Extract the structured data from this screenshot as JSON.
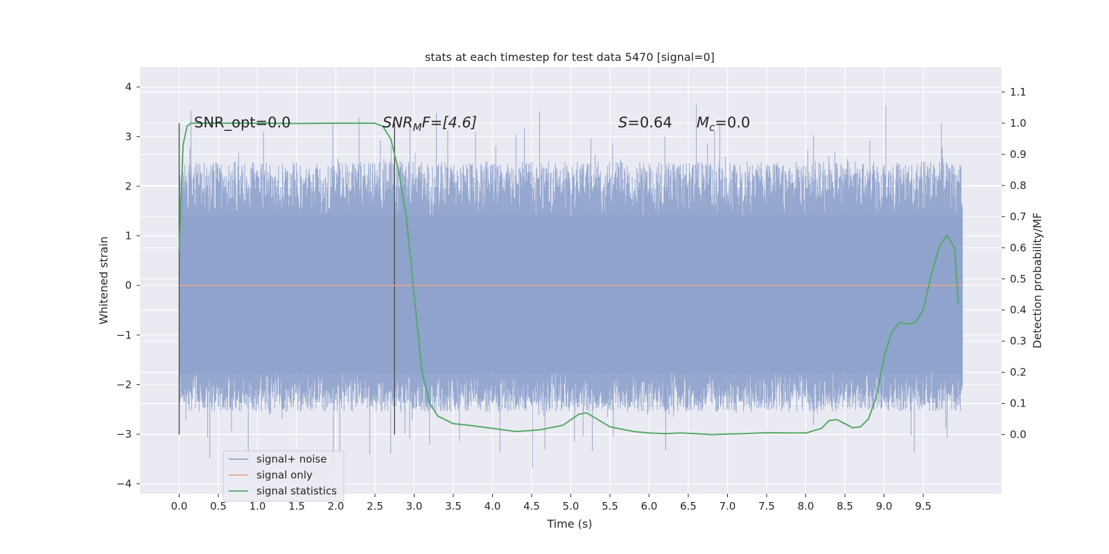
{
  "chart_data": {
    "type": "line",
    "title": "stats at each timestep for test data 5470 [signal=0]",
    "xlabel": "Time (s)",
    "ylabel": "Whitened strain",
    "ylabel_right": "Detection probability/MF",
    "xlim": [
      -0.5,
      10.5
    ],
    "ylim": [
      -4.2,
      4.4
    ],
    "ylim_right": [
      -0.19,
      1.18
    ],
    "x_ticks": [
      "0.0",
      "0.5",
      "1.0",
      "1.5",
      "2.0",
      "2.5",
      "3.0",
      "3.5",
      "4.0",
      "4.5",
      "5.0",
      "5.5",
      "6.0",
      "6.5",
      "7.0",
      "7.5",
      "8.0",
      "8.5",
      "9.0",
      "9.5"
    ],
    "x_tick_values": [
      0,
      0.5,
      1,
      1.5,
      2,
      2.5,
      3,
      3.5,
      4,
      4.5,
      5,
      5.5,
      6,
      6.5,
      7,
      7.5,
      8,
      8.5,
      9,
      9.5
    ],
    "y_ticks": [
      "4",
      "3",
      "2",
      "1",
      "0",
      "−1",
      "−2",
      "−3",
      "−4"
    ],
    "y_tick_values": [
      4,
      3,
      2,
      1,
      0,
      -1,
      -2,
      -3,
      -4
    ],
    "y_ticks_right": [
      "1.1",
      "1.0",
      "0.9",
      "0.8",
      "0.7",
      "0.6",
      "0.5",
      "0.4",
      "0.3",
      "0.2",
      "0.1",
      "0.0"
    ],
    "y_tick_values_right": [
      1.1,
      1.0,
      0.9,
      0.8,
      0.7,
      0.6,
      0.5,
      0.4,
      0.3,
      0.2,
      0.1,
      0.0
    ],
    "grid": true,
    "legend": "bottom-left",
    "annotations": {
      "snr_opt": "SNR_opt=0.0",
      "snr_mf_base": "SNR",
      "snr_mf_sub": "M",
      "snr_mf_rest": "F=[4.6]",
      "stat_s_italic": "S",
      "stat_s_rest": "=0.64",
      "mc_base": "M",
      "mc_sub": "c",
      "mc_rest": "=0.0"
    },
    "vertical_markers": [
      0.0,
      2.75
    ],
    "series": [
      {
        "name": "signal+ noise",
        "color": "#8fa3cc",
        "axis": "left",
        "envelope": {
          "x_range": [
            0.0,
            10.0
          ],
          "typical_upper": 1.4,
          "typical_lower": -1.75,
          "peak_max": 4.05,
          "peak_min": -3.75
        }
      },
      {
        "name": "signal only",
        "color": "#e8a48a",
        "axis": "left",
        "x": [
          0.0,
          10.0
        ],
        "values": [
          0.0,
          0.0
        ]
      },
      {
        "name": "signal statistics",
        "color": "#55a868",
        "axis": "right",
        "x": [
          0.0,
          0.05,
          0.1,
          0.15,
          0.2,
          0.3,
          0.5,
          1.0,
          1.5,
          2.0,
          2.5,
          2.6,
          2.7,
          2.8,
          2.9,
          3.0,
          3.1,
          3.2,
          3.3,
          3.5,
          3.7,
          4.0,
          4.3,
          4.6,
          4.9,
          5.1,
          5.2,
          5.3,
          5.5,
          5.8,
          6.0,
          6.2,
          6.4,
          6.6,
          6.8,
          7.0,
          7.2,
          7.5,
          7.8,
          8.0,
          8.2,
          8.3,
          8.4,
          8.5,
          8.6,
          8.7,
          8.8,
          8.9,
          9.0,
          9.1,
          9.2,
          9.3,
          9.4,
          9.5,
          9.6,
          9.7,
          9.8,
          9.9,
          9.95
        ],
        "values": [
          0.59,
          0.93,
          0.99,
          1.0,
          1.0,
          1.0,
          1.0,
          1.0,
          0.999,
          1.0,
          1.0,
          0.99,
          0.95,
          0.85,
          0.7,
          0.45,
          0.2,
          0.1,
          0.06,
          0.035,
          0.03,
          0.02,
          0.01,
          0.015,
          0.03,
          0.065,
          0.07,
          0.055,
          0.025,
          0.01,
          0.005,
          0.003,
          0.005,
          0.003,
          0.0,
          0.002,
          0.003,
          0.006,
          0.005,
          0.005,
          0.02,
          0.045,
          0.048,
          0.035,
          0.022,
          0.025,
          0.05,
          0.12,
          0.25,
          0.33,
          0.36,
          0.355,
          0.36,
          0.4,
          0.51,
          0.6,
          0.64,
          0.6,
          0.42
        ]
      }
    ]
  }
}
